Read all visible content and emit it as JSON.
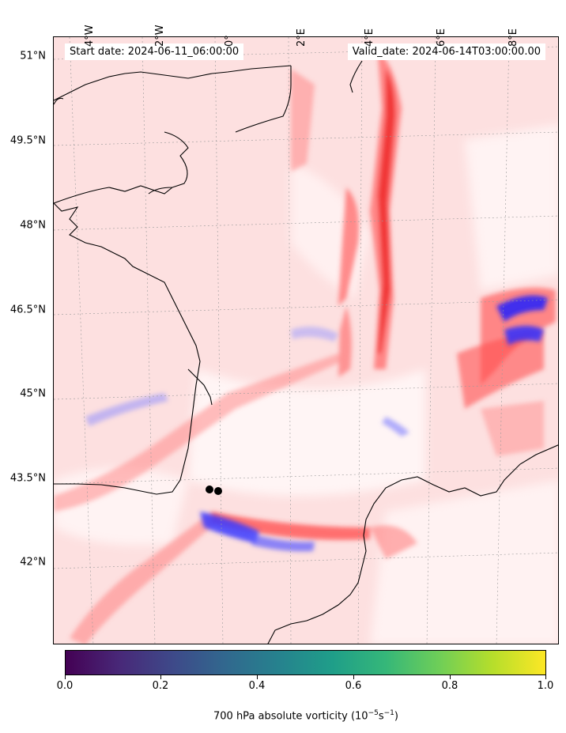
{
  "map": {
    "start_date_label": "Start date: 2024-06-11_06:00:00",
    "valid_date_label": "Valid_date: 2024-06-14T03:00:00.00",
    "lat_labels": [
      "51°N",
      "49.5°N",
      "48°N",
      "46.5°N",
      "45°N",
      "43.5°N",
      "42°N"
    ],
    "lon_labels": [
      "4°W",
      "2°W",
      "0°",
      "2°E",
      "4°E",
      "6°E",
      "8°E"
    ],
    "colors": {
      "background_field": "#fde0e0",
      "positive_vorticity": "#ff0000",
      "negative_vorticity": "#0000ff",
      "coastline": "#000000"
    },
    "markers": [
      "black-dot",
      "black-dot"
    ]
  },
  "colorbar": {
    "colormap": "viridis",
    "ticks": [
      "0.0",
      "0.2",
      "0.4",
      "0.6",
      "0.8",
      "1.0"
    ],
    "title_prefix": "700 hPa absolute vorticity (10",
    "title_exp1": "−5",
    "title_mid": "s",
    "title_exp2": "−1",
    "title_suffix": ")"
  }
}
